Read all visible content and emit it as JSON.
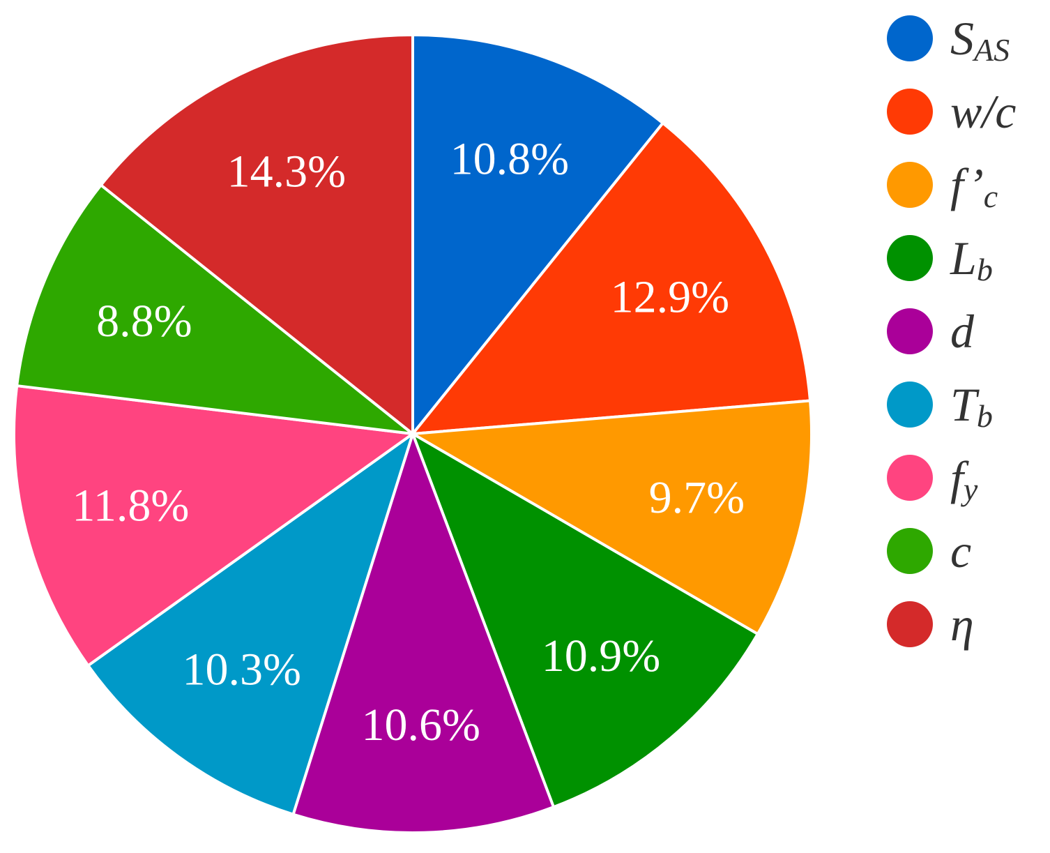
{
  "chart_data": {
    "type": "pie",
    "categories": [
      "SAS",
      "w/c",
      "f’c",
      "Lb",
      "d",
      "Tb",
      "fy",
      "c",
      "η"
    ],
    "values": [
      10.8,
      12.9,
      9.7,
      10.9,
      10.6,
      10.3,
      11.8,
      8.8,
      14.3
    ],
    "value_labels": [
      "10.8%",
      "12.9%",
      "9.7%",
      "10.9%",
      "10.6%",
      "10.3%",
      "11.8%",
      "8.8%",
      "14.3%"
    ],
    "colors": [
      "#0066cc",
      "#ff3a05",
      "#ff9900",
      "#009100",
      "#aa0099",
      "#0099c8",
      "#ff4480",
      "#2ea800",
      "#d42a2a"
    ],
    "legend": "right"
  }
}
